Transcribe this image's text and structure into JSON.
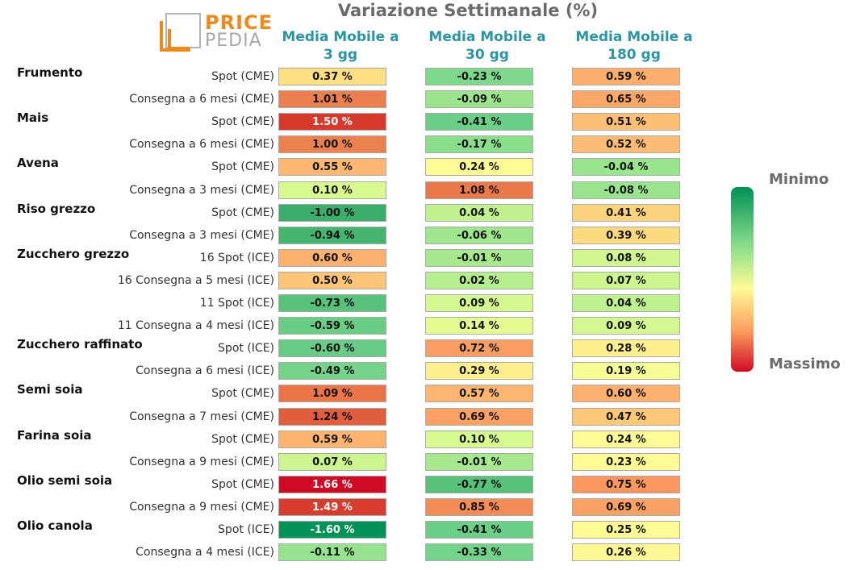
{
  "title": "Variazione Settimanale (%)",
  "logo": {
    "line1": "PRICE",
    "line2": "PEDIA"
  },
  "legend": {
    "min_label": "Minimo",
    "max_label": "Massimo",
    "colors": [
      "#009257",
      "#8fdf8c",
      "#fefb96",
      "#fd9c5f",
      "#cf0a24"
    ]
  },
  "chart_data": {
    "type": "heatmap",
    "title": "Variazione Settimanale (%)",
    "columns": [
      "Media Mobile a 3 gg",
      "Media Mobile a 30 gg",
      "Media Mobile a 180 gg"
    ],
    "column_lines": [
      [
        "Media Mobile a",
        "3 gg"
      ],
      [
        "Media Mobile a",
        "30 gg"
      ],
      [
        "Media Mobile a",
        "180 gg"
      ]
    ],
    "rows": [
      {
        "group": "Frumento",
        "label": "Spot (CME)",
        "values": [
          0.37,
          -0.23,
          0.59
        ],
        "texts": [
          "0.37 %",
          "-0.23 %",
          "0.59 %"
        ],
        "colors": [
          "#fde084",
          "#7fd98c",
          "#fcae6c"
        ],
        "text_colors": [
          "#111",
          "#111",
          "#111"
        ]
      },
      {
        "group": "",
        "label": "Consegna a 6 mesi (CME)",
        "values": [
          1.01,
          -0.09,
          0.65
        ],
        "texts": [
          "1.01 %",
          "-0.09 %",
          "0.65 %"
        ],
        "colors": [
          "#ec7f4f",
          "#9ce48e",
          "#fca767"
        ],
        "text_colors": [
          "#111",
          "#111",
          "#111"
        ]
      },
      {
        "group": "Mais",
        "label": "Spot (CME)",
        "values": [
          1.5,
          -0.41,
          0.51
        ],
        "texts": [
          "1.50 %",
          "-0.41 %",
          "0.51 %"
        ],
        "colors": [
          "#d63a2c",
          "#6ccf88",
          "#fdbe76"
        ],
        "text_colors": [
          "#fff",
          "#111",
          "#111"
        ]
      },
      {
        "group": "",
        "label": "Consegna a 6 mesi (CME)",
        "values": [
          1.0,
          -0.17,
          0.52
        ],
        "texts": [
          "1.00 %",
          "-0.17 %",
          "0.52 %"
        ],
        "colors": [
          "#ec8150",
          "#8bdf8c",
          "#fdbc75"
        ],
        "text_colors": [
          "#111",
          "#111",
          "#111"
        ]
      },
      {
        "group": "Avena",
        "label": "Spot (CME)",
        "values": [
          0.55,
          0.24,
          -0.04
        ],
        "texts": [
          "0.55 %",
          "0.24 %",
          "-0.04 %"
        ],
        "colors": [
          "#fdb973",
          "#fefb96",
          "#9ae68f"
        ],
        "text_colors": [
          "#111",
          "#111",
          "#111"
        ]
      },
      {
        "group": "",
        "label": "Consegna a 3 mesi (CME)",
        "values": [
          0.1,
          1.08,
          -0.08
        ],
        "texts": [
          "0.10 %",
          "1.08 %",
          "-0.08 %"
        ],
        "colors": [
          "#d8f98f",
          "#ea7a4c",
          "#9ae48e"
        ],
        "text_colors": [
          "#111",
          "#111",
          "#111"
        ]
      },
      {
        "group": "Riso grezzo",
        "label": "Spot (CME)",
        "values": [
          -1.0,
          0.04,
          0.41
        ],
        "texts": [
          "-1.00 %",
          "0.04 %",
          "0.41 %"
        ],
        "colors": [
          "#3cae6c",
          "#c2f28f",
          "#fdd37e"
        ],
        "text_colors": [
          "#111",
          "#111",
          "#111"
        ]
      },
      {
        "group": "",
        "label": "Consegna a 3 mesi (CME)",
        "values": [
          -0.94,
          -0.06,
          0.39
        ],
        "texts": [
          "-0.94 %",
          "-0.06 %",
          "0.39 %"
        ],
        "colors": [
          "#44b46f",
          "#9fe68e",
          "#fdd97f"
        ],
        "text_colors": [
          "#111",
          "#111",
          "#111"
        ]
      },
      {
        "group": "Zucchero grezzo",
        "label": "16 Spot (ICE)",
        "values": [
          0.6,
          -0.01,
          0.08
        ],
        "texts": [
          "0.60 %",
          "-0.01 %",
          "0.08 %"
        ],
        "colors": [
          "#fcb26e",
          "#a8e98f",
          "#d2f68f"
        ],
        "text_colors": [
          "#111",
          "#111",
          "#111"
        ]
      },
      {
        "group": "",
        "label": "16 Consegna a 5 mesi (ICE)",
        "values": [
          0.5,
          0.02,
          0.07
        ],
        "texts": [
          "0.50 %",
          "0.02 %",
          "0.07 %"
        ],
        "colors": [
          "#fdc578",
          "#b4ee8f",
          "#ccf48f"
        ],
        "text_colors": [
          "#111",
          "#111",
          "#111"
        ]
      },
      {
        "group": "",
        "label": "11 Spot (ICE)",
        "values": [
          -0.73,
          0.09,
          0.04
        ],
        "texts": [
          "-0.73 %",
          "0.09 %",
          "0.04 %"
        ],
        "colors": [
          "#58c27b",
          "#d4f78f",
          "#bff18f"
        ],
        "text_colors": [
          "#111",
          "#111",
          "#111"
        ]
      },
      {
        "group": "",
        "label": "11 Consegna a 4 mesi (ICE)",
        "values": [
          -0.59,
          0.14,
          0.09
        ],
        "texts": [
          "-0.59 %",
          "0.14 %",
          "0.09 %"
        ],
        "colors": [
          "#6acd86",
          "#e4fb91",
          "#d4f78f"
        ],
        "text_colors": [
          "#111",
          "#111",
          "#111"
        ]
      },
      {
        "group": "Zucchero raffinato",
        "label": "Spot (ICE)",
        "values": [
          -0.6,
          0.72,
          0.28
        ],
        "texts": [
          "-0.60 %",
          "0.72 %",
          "0.28 %"
        ],
        "colors": [
          "#69cc86",
          "#f99d62",
          "#fef08f"
        ],
        "text_colors": [
          "#111",
          "#111",
          "#111"
        ]
      },
      {
        "group": "",
        "label": "Consegna a 6 mesi (ICE)",
        "values": [
          -0.49,
          0.29,
          0.19
        ],
        "texts": [
          "-0.49 %",
          "0.29 %",
          "0.19 %"
        ],
        "colors": [
          "#76d38a",
          "#fdee8e",
          "#f5fe94"
        ],
        "text_colors": [
          "#111",
          "#111",
          "#111"
        ]
      },
      {
        "group": "Semi soia",
        "label": "Spot (CME)",
        "values": [
          1.09,
          0.57,
          0.6
        ],
        "texts": [
          "1.09 %",
          "0.57 %",
          "0.60 %"
        ],
        "colors": [
          "#e97549",
          "#fcb671",
          "#fcb26e"
        ],
        "text_colors": [
          "#111",
          "#111",
          "#111"
        ]
      },
      {
        "group": "",
        "label": "Consegna a 7 mesi (CME)",
        "values": [
          1.24,
          0.69,
          0.47
        ],
        "texts": [
          "1.24 %",
          "0.69 %",
          "0.47 %"
        ],
        "colors": [
          "#e05e3e",
          "#fba165",
          "#fdc979"
        ],
        "text_colors": [
          "#111",
          "#111",
          "#111"
        ]
      },
      {
        "group": "Farina soia",
        "label": "Spot (CME)",
        "values": [
          0.59,
          0.1,
          0.24
        ],
        "texts": [
          "0.59 %",
          "0.10 %",
          "0.24 %"
        ],
        "colors": [
          "#fcb46f",
          "#d8f98f",
          "#fefb96"
        ],
        "text_colors": [
          "#111",
          "#111",
          "#111"
        ]
      },
      {
        "group": "",
        "label": "Consegna a 9 mesi (CME)",
        "values": [
          0.07,
          -0.01,
          0.23
        ],
        "texts": [
          "0.07 %",
          "-0.01 %",
          "0.23 %"
        ],
        "colors": [
          "#ccf48f",
          "#a8e98f",
          "#fefb96"
        ],
        "text_colors": [
          "#111",
          "#111",
          "#111"
        ]
      },
      {
        "group": "Olio semi soia",
        "label": "Spot (CME)",
        "values": [
          1.66,
          -0.77,
          0.75
        ],
        "texts": [
          "1.66 %",
          "-0.77 %",
          "0.75 %"
        ],
        "colors": [
          "#cf0a24",
          "#58c27b",
          "#f8975f"
        ],
        "text_colors": [
          "#fff",
          "#111",
          "#111"
        ]
      },
      {
        "group": "",
        "label": "Consegna a 9 mesi (CME)",
        "values": [
          1.49,
          0.85,
          0.69
        ],
        "texts": [
          "1.49 %",
          "0.85 %",
          "0.69 %"
        ],
        "colors": [
          "#d73d2e",
          "#f48c57",
          "#fba165"
        ],
        "text_colors": [
          "#fff",
          "#111",
          "#111"
        ]
      },
      {
        "group": "Olio canola",
        "label": "Spot (ICE)",
        "values": [
          -1.6,
          -0.41,
          0.25
        ],
        "texts": [
          "-1.60 %",
          "-0.41 %",
          "0.25 %"
        ],
        "colors": [
          "#009257",
          "#6ccf88",
          "#fefb96"
        ],
        "text_colors": [
          "#fff",
          "#111",
          "#111"
        ]
      },
      {
        "group": "",
        "label": "Consegna a 4 mesi (ICE)",
        "values": [
          -0.11,
          -0.33,
          0.26
        ],
        "texts": [
          "-0.11 %",
          "-0.33 %",
          "0.26 %"
        ],
        "colors": [
          "#95e38e",
          "#73d38a",
          "#fef894"
        ],
        "text_colors": [
          "#111",
          "#111",
          "#111"
        ]
      }
    ]
  }
}
